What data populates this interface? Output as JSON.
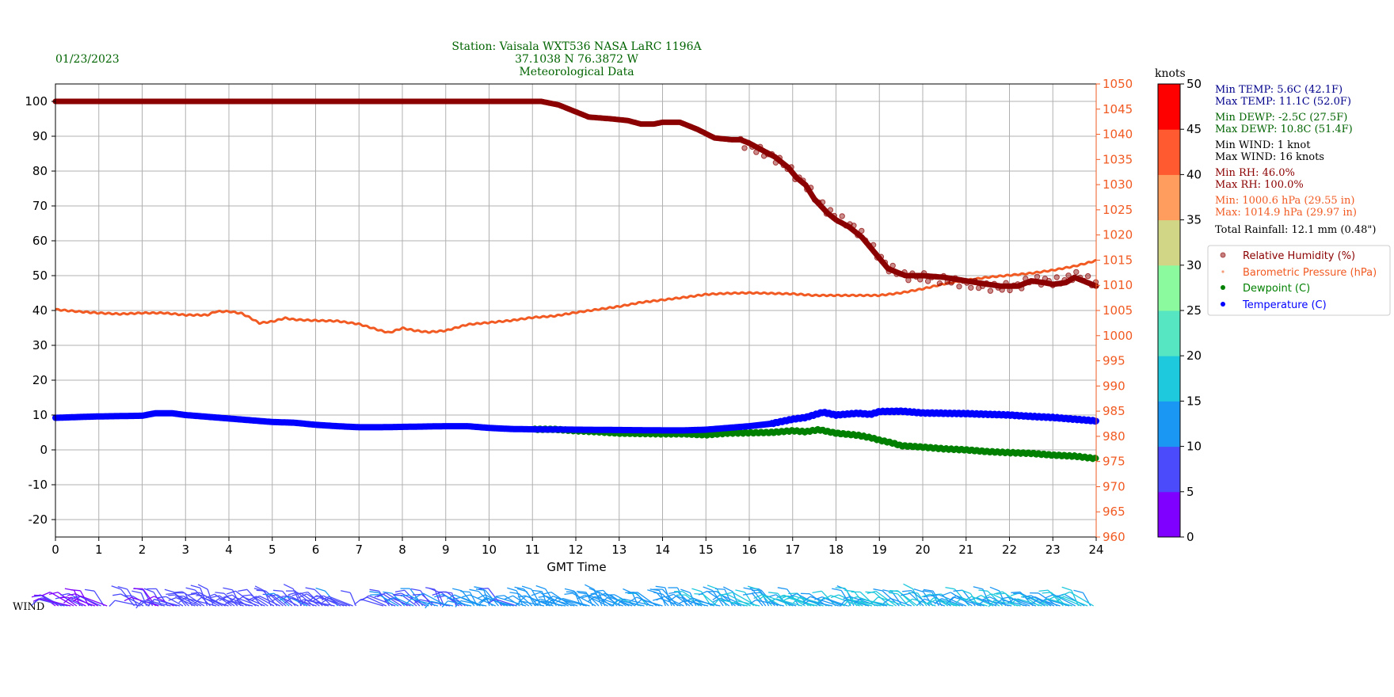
{
  "header": {
    "date": "01/23/2023",
    "title_line1": "Station:  Vaisala WXT536  NASA LaRC 1196A",
    "title_line2": "37.1038 N 76.3872 W",
    "title_line3": "Meteorological Data"
  },
  "colorbar": {
    "label": "knots",
    "ticks": [
      "0",
      "5",
      "10",
      "15",
      "20",
      "25",
      "30",
      "35",
      "40",
      "45",
      "50"
    ],
    "colors": [
      "#7f00ff",
      "#4b4bfc",
      "#1a96f3",
      "#1ec8dd",
      "#56e6c1",
      "#8bfa9f",
      "#d1d686",
      "#ff9d5e",
      "#ff5a30",
      "#ff0000"
    ]
  },
  "stats": {
    "min_temp": "Min TEMP: 5.6C (42.1F)",
    "max_temp": "Max TEMP: 11.1C (52.0F)",
    "min_dewp": "Min DEWP: -2.5C (27.5F)",
    "max_dewp": "Max DEWP: 10.8C (51.4F)",
    "min_wind": "Min WIND: 1 knot",
    "max_wind": "Max WIND: 16 knots",
    "min_rh": "Min RH: 46.0%",
    "max_rh": "Max RH: 100.0%",
    "min_pres": "Min: 1000.6 hPa (29.55 in)",
    "max_pres": "Max: 1014.9 hPa (29.97 in)",
    "rainfall": "Total Rainfall: 12.1 mm (0.48\")"
  },
  "legend": [
    {
      "label": "Relative Humidity (%)",
      "color": "#8b0000"
    },
    {
      "label": "Barometric Pressure (hPa)",
      "color": "#f15a22"
    },
    {
      "label": "Dewpoint (C)",
      "color": "#008000"
    },
    {
      "label": "Temperature (C)",
      "color": "#0000ff"
    }
  ],
  "wind_label": "WIND",
  "colors": {
    "temp": "#0000ff",
    "dewp": "#008000",
    "rh": "#8b0000",
    "pres": "#f15a22",
    "title": "#006400",
    "stats_temp": "#00008b",
    "stats_dewp": "#006400",
    "stats_rh": "#8b0000",
    "stats_pres": "#f15a22"
  },
  "chart_data": {
    "type": "line",
    "xlabel": "GMT Time",
    "xlim": [
      0,
      24
    ],
    "x_ticks": [
      "0",
      "1",
      "2",
      "3",
      "4",
      "5",
      "6",
      "7",
      "8",
      "9",
      "10",
      "11",
      "12",
      "13",
      "14",
      "15",
      "16",
      "17",
      "18",
      "19",
      "20",
      "21",
      "22",
      "23",
      "24"
    ],
    "ylim_left": [
      -25,
      105
    ],
    "y_ticks_left": [
      "-20",
      "-10",
      "0",
      "10",
      "20",
      "30",
      "40",
      "50",
      "60",
      "70",
      "80",
      "90",
      "100"
    ],
    "ylim_right": [
      960,
      1050
    ],
    "y_ticks_right": [
      "960",
      "965",
      "970",
      "975",
      "980",
      "985",
      "990",
      "995",
      "1000",
      "1005",
      "1010",
      "1015",
      "1020",
      "1025",
      "1030",
      "1035",
      "1040",
      "1045",
      "1050"
    ],
    "grid": true,
    "series": [
      {
        "name": "Relative Humidity (%)",
        "axis": "left",
        "points": [
          [
            0,
            100
          ],
          [
            11.2,
            100
          ],
          [
            11.6,
            99
          ],
          [
            12,
            97
          ],
          [
            12.3,
            95.5
          ],
          [
            12.8,
            95
          ],
          [
            13.2,
            94.5
          ],
          [
            13.5,
            93.5
          ],
          [
            13.8,
            93.5
          ],
          [
            14,
            94
          ],
          [
            14.4,
            94
          ],
          [
            14.8,
            92
          ],
          [
            15.2,
            89.5
          ],
          [
            15.6,
            89
          ],
          [
            15.8,
            89
          ],
          [
            16,
            88
          ],
          [
            16.3,
            86
          ],
          [
            16.6,
            84
          ],
          [
            16.9,
            81
          ],
          [
            17.1,
            78
          ],
          [
            17.3,
            76
          ],
          [
            17.5,
            72
          ],
          [
            17.8,
            68
          ],
          [
            18,
            66
          ],
          [
            18.3,
            64
          ],
          [
            18.6,
            61
          ],
          [
            18.8,
            58
          ],
          [
            19,
            55
          ],
          [
            19.2,
            52
          ],
          [
            19.4,
            51
          ],
          [
            19.6,
            50
          ],
          [
            20,
            50
          ],
          [
            20.5,
            49.5
          ],
          [
            21,
            48.5
          ],
          [
            21.5,
            47.5
          ],
          [
            21.8,
            47
          ],
          [
            22.2,
            47
          ],
          [
            22.5,
            48.5
          ],
          [
            22.8,
            48
          ],
          [
            23,
            47.5
          ],
          [
            23.3,
            48
          ],
          [
            23.5,
            49.5
          ],
          [
            23.7,
            48.5
          ],
          [
            24,
            47
          ]
        ]
      },
      {
        "name": "Barometric Pressure (hPa)",
        "axis": "right",
        "points": [
          [
            0,
            1005.2
          ],
          [
            0.5,
            1004.8
          ],
          [
            1,
            1004.5
          ],
          [
            1.5,
            1004.3
          ],
          [
            2,
            1004.5
          ],
          [
            2.5,
            1004.5
          ],
          [
            3,
            1004.1
          ],
          [
            3.5,
            1004.1
          ],
          [
            3.7,
            1004.8
          ],
          [
            4,
            1004.8
          ],
          [
            4.3,
            1004.4
          ],
          [
            4.5,
            1003.5
          ],
          [
            4.7,
            1002.5
          ],
          [
            5,
            1002.8
          ],
          [
            5.3,
            1003.5
          ],
          [
            5.5,
            1003.2
          ],
          [
            6,
            1003
          ],
          [
            6.5,
            1002.9
          ],
          [
            7,
            1002.3
          ],
          [
            7.5,
            1001
          ],
          [
            7.7,
            1000.6
          ],
          [
            8,
            1001.5
          ],
          [
            8.3,
            1001
          ],
          [
            8.6,
            1000.7
          ],
          [
            9,
            1001
          ],
          [
            9.5,
            1002.2
          ],
          [
            10,
            1002.6
          ],
          [
            10.5,
            1003
          ],
          [
            11,
            1003.6
          ],
          [
            11.5,
            1003.9
          ],
          [
            12,
            1004.6
          ],
          [
            12.5,
            1005.2
          ],
          [
            13,
            1005.8
          ],
          [
            13.5,
            1006.6
          ],
          [
            14,
            1007.1
          ],
          [
            14.5,
            1007.6
          ],
          [
            15,
            1008.2
          ],
          [
            15.5,
            1008.4
          ],
          [
            16,
            1008.5
          ],
          [
            16.5,
            1008.4
          ],
          [
            17,
            1008.3
          ],
          [
            17.5,
            1008
          ],
          [
            18,
            1008
          ],
          [
            18.5,
            1008
          ],
          [
            19,
            1008
          ],
          [
            19.5,
            1008.5
          ],
          [
            20,
            1009.3
          ],
          [
            20.5,
            1010.3
          ],
          [
            21,
            1011
          ],
          [
            21.5,
            1011.6
          ],
          [
            22,
            1012
          ],
          [
            22.5,
            1012.4
          ],
          [
            23,
            1013
          ],
          [
            23.5,
            1013.8
          ],
          [
            24,
            1014.9
          ]
        ]
      },
      {
        "name": "Dewpoint (C)",
        "axis": "left",
        "points": [
          [
            0,
            9.2
          ],
          [
            0.7,
            9.5
          ],
          [
            1,
            9.6
          ],
          [
            1.5,
            9.7
          ],
          [
            2,
            9.8
          ],
          [
            2.3,
            10.5
          ],
          [
            2.7,
            10.5
          ],
          [
            3,
            10
          ],
          [
            3.5,
            9.5
          ],
          [
            4,
            9
          ],
          [
            4.5,
            8.5
          ],
          [
            5,
            8
          ],
          [
            5.5,
            7.8
          ],
          [
            6,
            7.2
          ],
          [
            6.5,
            6.8
          ],
          [
            7,
            6.5
          ],
          [
            7.5,
            6.5
          ],
          [
            8,
            6.6
          ],
          [
            8.5,
            6.7
          ],
          [
            9,
            6.8
          ],
          [
            9.5,
            6.8
          ],
          [
            10,
            6.3
          ],
          [
            10.5,
            6
          ],
          [
            11,
            5.9
          ],
          [
            11.5,
            5.9
          ],
          [
            12,
            5.5
          ],
          [
            12.5,
            5.2
          ],
          [
            13,
            4.8
          ],
          [
            13.5,
            4.7
          ],
          [
            14,
            4.6
          ],
          [
            14.5,
            4.6
          ],
          [
            15,
            4.3
          ],
          [
            15.5,
            4.8
          ],
          [
            16,
            4.9
          ],
          [
            16.5,
            5
          ],
          [
            17,
            5.5
          ],
          [
            17.3,
            5.2
          ],
          [
            17.6,
            5.8
          ],
          [
            18,
            4.8
          ],
          [
            18.5,
            4.2
          ],
          [
            18.8,
            3.5
          ],
          [
            19,
            2.8
          ],
          [
            19.3,
            2
          ],
          [
            19.5,
            1.2
          ],
          [
            20,
            0.8
          ],
          [
            20.5,
            0.3
          ],
          [
            21,
            0
          ],
          [
            21.5,
            -0.5
          ],
          [
            22,
            -0.8
          ],
          [
            22.5,
            -1
          ],
          [
            23,
            -1.5
          ],
          [
            23.5,
            -1.8
          ],
          [
            24,
            -2.5
          ]
        ]
      },
      {
        "name": "Temperature (C)",
        "axis": "left",
        "points": [
          [
            0,
            9.2
          ],
          [
            0.7,
            9.5
          ],
          [
            1,
            9.6
          ],
          [
            1.5,
            9.7
          ],
          [
            2,
            9.8
          ],
          [
            2.3,
            10.5
          ],
          [
            2.7,
            10.5
          ],
          [
            3,
            10
          ],
          [
            3.5,
            9.5
          ],
          [
            4,
            9
          ],
          [
            4.5,
            8.5
          ],
          [
            5,
            8
          ],
          [
            5.5,
            7.8
          ],
          [
            6,
            7.2
          ],
          [
            6.5,
            6.8
          ],
          [
            7,
            6.5
          ],
          [
            7.5,
            6.5
          ],
          [
            8,
            6.6
          ],
          [
            8.5,
            6.7
          ],
          [
            9,
            6.8
          ],
          [
            9.5,
            6.8
          ],
          [
            10,
            6.3
          ],
          [
            10.5,
            6
          ],
          [
            11,
            5.9
          ],
          [
            12,
            5.8
          ],
          [
            13,
            5.7
          ],
          [
            14,
            5.6
          ],
          [
            14.5,
            5.6
          ],
          [
            15,
            5.8
          ],
          [
            15.5,
            6.3
          ],
          [
            16,
            6.8
          ],
          [
            16.5,
            7.5
          ],
          [
            17,
            8.8
          ],
          [
            17.3,
            9.3
          ],
          [
            17.7,
            10.8
          ],
          [
            18,
            10
          ],
          [
            18.5,
            10.5
          ],
          [
            18.8,
            10.2
          ],
          [
            19,
            11
          ],
          [
            19.5,
            11.1
          ],
          [
            20,
            10.6
          ],
          [
            20.5,
            10.5
          ],
          [
            21,
            10.4
          ],
          [
            21.5,
            10.2
          ],
          [
            22,
            10
          ],
          [
            22.5,
            9.6
          ],
          [
            23,
            9.3
          ],
          [
            23.5,
            8.8
          ],
          [
            24,
            8.3
          ]
        ]
      }
    ]
  }
}
